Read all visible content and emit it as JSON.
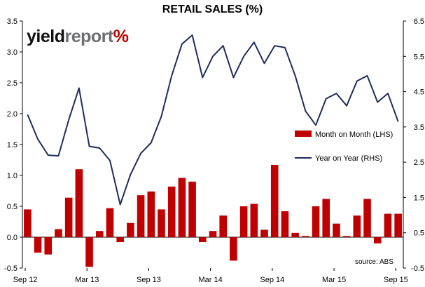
{
  "logo": {
    "part1": "yield",
    "part2": "report",
    "part3": "%"
  },
  "chart_data": {
    "type": "bar+line",
    "title": "RETAIL SALES (%)",
    "x_tick_labels": [
      "Sep 12",
      "Mar 13",
      "Sep 13",
      "Mar 14",
      "Sep 14",
      "Mar 15",
      "Sep 15"
    ],
    "y_left": {
      "min": -0.5,
      "max": 3.5,
      "ticks": [
        "-0.5",
        "0.0",
        "0.5",
        "1.0",
        "1.5",
        "2.0",
        "2.5",
        "3.0",
        "3.5"
      ]
    },
    "y_right": {
      "min": -0.5,
      "max": 6.5,
      "ticks": [
        "-0.5",
        "0.5",
        "1.5",
        "2.5",
        "3.5",
        "4.5",
        "5.5",
        "6.5"
      ]
    },
    "series": [
      {
        "name": "Month on Month (LHS)",
        "type": "bar",
        "axis": "left",
        "color": "#c00000",
        "values": [
          0.45,
          -0.25,
          -0.28,
          0.13,
          0.64,
          1.1,
          -0.48,
          0.1,
          0.47,
          -0.08,
          0.23,
          0.68,
          0.74,
          0.45,
          0.82,
          0.96,
          0.9,
          -0.08,
          0.1,
          0.35,
          -0.38,
          0.5,
          0.54,
          0.12,
          1.17,
          0.42,
          0.07,
          0.02,
          0.5,
          0.62,
          0.22,
          0.02,
          0.35,
          0.62,
          -0.1,
          0.38,
          0.38
        ]
      },
      {
        "name": "Year on Year (RHS)",
        "type": "line",
        "axis": "right",
        "color": "#1f2d5a",
        "values": [
          3.85,
          3.15,
          2.7,
          2.68,
          3.7,
          4.6,
          2.95,
          2.9,
          2.55,
          1.3,
          2.15,
          2.75,
          3.05,
          3.8,
          4.95,
          5.85,
          6.1,
          4.9,
          5.5,
          5.8,
          4.9,
          5.5,
          5.9,
          5.3,
          5.8,
          5.75,
          4.95,
          3.95,
          3.55,
          4.3,
          4.45,
          4.1,
          4.8,
          4.95,
          4.2,
          4.45,
          3.65
        ]
      }
    ],
    "legend_position": "right",
    "source": "source: ABS"
  }
}
